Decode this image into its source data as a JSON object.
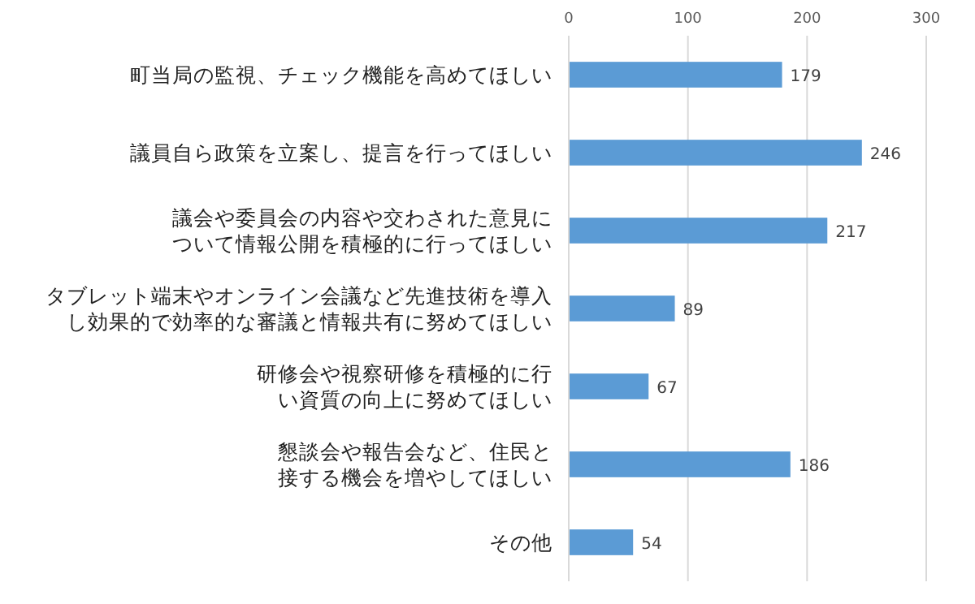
{
  "chart_data": {
    "type": "bar",
    "orientation": "horizontal",
    "categories": [
      "町当局の監視、チェック機能を高めてほしい",
      "議員自ら政策を立案し、提言を行ってほしい",
      "議会や委員会の内容や交わされた意見について情報公開を積極的に行ってほしい",
      "タブレット端末やオンライン会議など先進技術を導入し効果的で効率的な審議と情報共有に努めてほしい",
      "研修会や視察研修を積極的に行い資質の向上に努めてほしい",
      "懇談会や報告会など、住民と接する機会を増やしてほしい",
      "その他"
    ],
    "values": [
      179,
      246,
      217,
      89,
      67,
      186,
      54
    ],
    "color": "#5b9bd5",
    "xlim": [
      0,
      300
    ],
    "xticks": [
      0,
      100,
      200,
      300
    ],
    "grid": "x",
    "data_labels": true
  }
}
